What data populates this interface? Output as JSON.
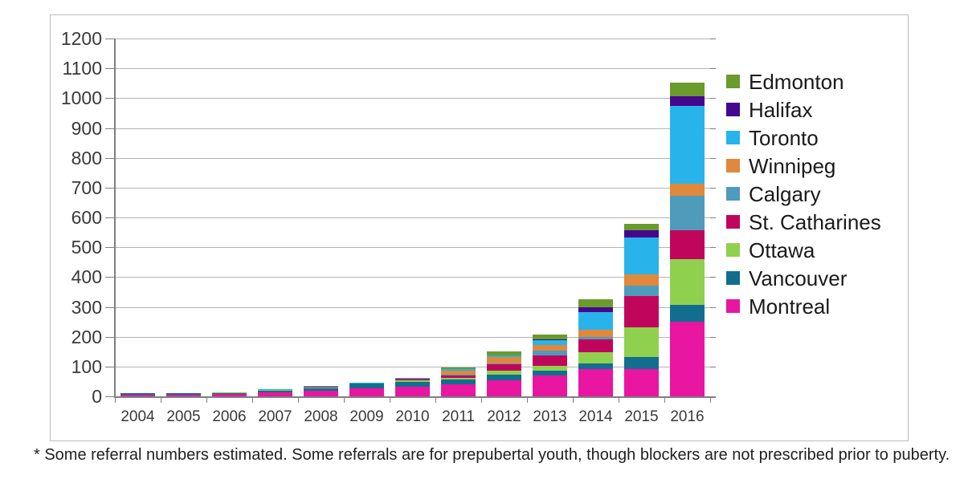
{
  "footnote": "* Some referral numbers estimated. Some referrals are for prepubertal youth, though blockers are not prescribed prior to puberty.",
  "appearance": {
    "background": "#ffffff",
    "border_color": "#bdbdbd",
    "gridline_color": "#b3b3b3",
    "axis_color": "#7f7f7f",
    "text_color": "#3a3a3a"
  },
  "chart_data": {
    "type": "bar",
    "stacked": true,
    "title": "",
    "xlabel": "",
    "ylabel": "",
    "categories": [
      "2004",
      "2005",
      "2006",
      "2007",
      "2008",
      "2009",
      "2010",
      "2011",
      "2012",
      "2013",
      "2014",
      "2015",
      "2016"
    ],
    "series": [
      {
        "name": "Montreal",
        "color": "#e816a1",
        "values": [
          6,
          6,
          9,
          14,
          18,
          28,
          32,
          40,
          55,
          70,
          92,
          92,
          250
        ]
      },
      {
        "name": "Vancouver",
        "color": "#116e8e",
        "values": [
          4,
          5,
          4,
          6,
          8,
          14,
          17,
          16,
          18,
          16,
          18,
          40,
          58
        ]
      },
      {
        "name": "Ottawa",
        "color": "#90d04f",
        "values": [
          0,
          0,
          1,
          2,
          3,
          3,
          6,
          6,
          14,
          16,
          38,
          100,
          153
        ]
      },
      {
        "name": "St. Catharines",
        "color": "#c0065c",
        "values": [
          0,
          0,
          0,
          0,
          2,
          0,
          3,
          8,
          20,
          36,
          43,
          103,
          95
        ]
      },
      {
        "name": "Calgary",
        "color": "#4f9bbc",
        "values": [
          0,
          0,
          0,
          0,
          0,
          0,
          0,
          2,
          2,
          15,
          7,
          36,
          117
        ]
      },
      {
        "name": "Winnipeg",
        "color": "#e0883c",
        "values": [
          0,
          0,
          0,
          0,
          0,
          0,
          0,
          14,
          22,
          18,
          26,
          38,
          41
        ]
      },
      {
        "name": "Toronto",
        "color": "#28b4ea",
        "values": [
          0,
          0,
          0,
          2,
          3,
          2,
          4,
          6,
          5,
          18,
          59,
          124,
          261
        ]
      },
      {
        "name": "Halifax",
        "color": "#45078d",
        "values": [
          0,
          0,
          0,
          0,
          0,
          0,
          0,
          0,
          0,
          3,
          16,
          23,
          31
        ]
      },
      {
        "name": "Edmonton",
        "color": "#6a9b2d",
        "values": [
          0,
          0,
          0,
          0,
          0,
          0,
          0,
          5,
          16,
          15,
          27,
          22,
          45
        ]
      }
    ],
    "stack_order": "bottom-to-top",
    "legend_top_to_bottom": [
      "Edmonton",
      "Halifax",
      "Toronto",
      "Winnipeg",
      "Calgary",
      "St. Catharines",
      "Ottawa",
      "Vancouver",
      "Montreal"
    ],
    "y_axis": {
      "min": 0,
      "max": 1200,
      "tick_step": 100,
      "tick_labels": [
        "0",
        "100",
        "200",
        "300",
        "400",
        "500",
        "600",
        "700",
        "800",
        "900",
        "1000",
        "1100",
        "1200"
      ]
    },
    "grid": true,
    "legend_position": "right"
  }
}
